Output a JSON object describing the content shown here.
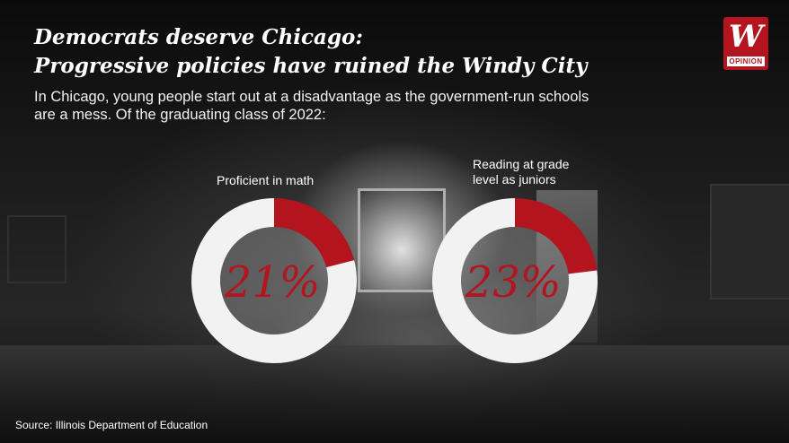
{
  "header": {
    "title_line1": "Democrats deserve Chicago:",
    "title_line2": "Progressive policies have ruined the Windy City",
    "subtitle": "In Chicago, young people start out at a disadvantage as the government-run schools are a mess. Of the graduating class of 2022:"
  },
  "logo": {
    "glyph": "W",
    "tag": "OPINION"
  },
  "chart_data": [
    {
      "type": "pie",
      "title": "Proficient in math",
      "value_label": "21%",
      "slices": [
        {
          "label": "Proficient in math",
          "value": 21,
          "color": "#b3141d"
        },
        {
          "label": "",
          "value": 79,
          "color": "#f2f2f2"
        }
      ]
    },
    {
      "type": "pie",
      "title": "Reading at grade level as juniors",
      "title_lines": [
        "Reading at grade",
        "level as juniors"
      ],
      "value_label": "23%",
      "slices": [
        {
          "label": "Reading at grade level as juniors",
          "value": 23,
          "color": "#b3141d"
        },
        {
          "label": "",
          "value": 77,
          "color": "#f2f2f2"
        }
      ]
    }
  ],
  "colors": {
    "accent": "#b3141d",
    "ring": "#f2f2f2"
  },
  "footer": {
    "source": "Source: Illinois Department of Education"
  }
}
